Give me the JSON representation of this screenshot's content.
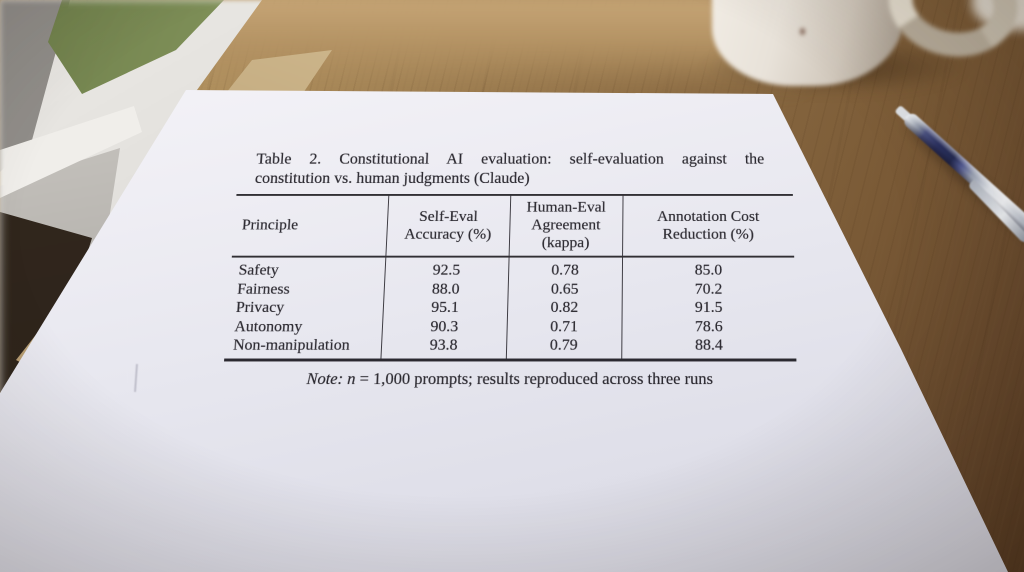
{
  "scene": {
    "description": "photograph of a printed evaluation table on a sheet of paper lying on a wooden desk, window light at top-left, white coffee mug and silver pen at top-right",
    "objects": [
      "window",
      "wooden-desk",
      "paper-sheet",
      "white-coffee-mug",
      "silver-pen"
    ],
    "colors": {
      "desk_wood": "#8b6b43",
      "paper": "#eceaf1",
      "ink": "#2b2930",
      "window_green": "#81925a",
      "mug": "#e8e2d9",
      "pen_blue": "#2b3160",
      "pen_silver": "#c3c9d3"
    }
  },
  "document": {
    "caption_line1": "Table 2. Constitutional AI evaluation: self-evaluation against the",
    "caption_line2": "constitution vs. human judgments (Claude)",
    "table": {
      "columns": [
        "Principle",
        "Self-Eval Accuracy (%)",
        "Human-Eval Agreement (kappa)",
        "Annotation Cost Reduction (%)"
      ],
      "rows": [
        [
          "Safety",
          "92.5",
          "0.78",
          "85.0"
        ],
        [
          "Fairness",
          "88.0",
          "0.65",
          "70.2"
        ],
        [
          "Privacy",
          "95.1",
          "0.82",
          "91.5"
        ],
        [
          "Autonomy",
          "90.3",
          "0.71",
          "78.6"
        ],
        [
          "Non-manipulation",
          "93.8",
          "0.79",
          "88.4"
        ]
      ]
    },
    "note": {
      "label": "Note:",
      "variable": "n",
      "rest": "= 1,000 prompts; results reproduced across three runs"
    }
  }
}
